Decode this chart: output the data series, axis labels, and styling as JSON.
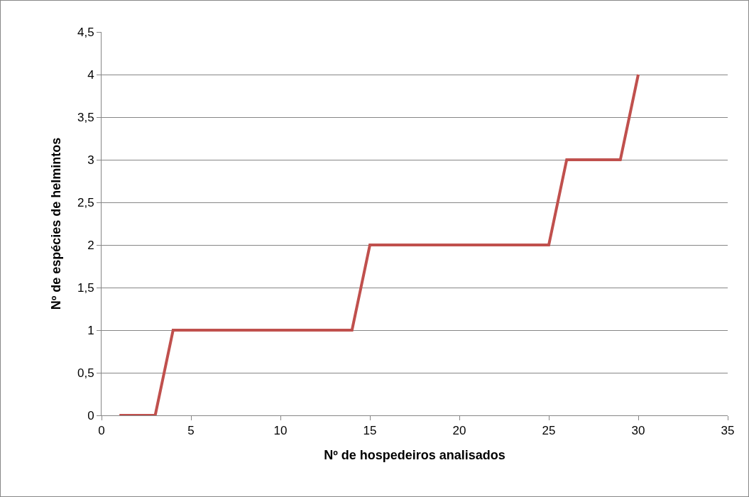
{
  "chart_data": {
    "type": "line",
    "xlabel": "Nº de hospedeiros analisados",
    "ylabel": "Nº de espécies de helmintos",
    "x": [
      1,
      2,
      3,
      4,
      5,
      6,
      7,
      8,
      9,
      10,
      11,
      12,
      13,
      14,
      15,
      16,
      17,
      18,
      19,
      20,
      21,
      22,
      23,
      24,
      25,
      26,
      27,
      28,
      29,
      30
    ],
    "series": [
      {
        "color": "#c0504d",
        "values": [
          0,
          0,
          0,
          1,
          1,
          1,
          1,
          1,
          1,
          1,
          1,
          1,
          1,
          1,
          2,
          2,
          2,
          2,
          2,
          2,
          2,
          2,
          2,
          2,
          2,
          3,
          3,
          3,
          3,
          4
        ]
      }
    ],
    "xlim": [
      0,
      35
    ],
    "xticks": [
      0,
      5,
      10,
      15,
      20,
      25,
      30,
      35
    ],
    "ylim": [
      0,
      4.5
    ],
    "yticks": [
      0,
      {
        "value": 0.5,
        "label": "0,5"
      },
      1,
      {
        "value": 1.5,
        "label": "1,5"
      },
      2,
      {
        "value": 2.5,
        "label": "2,5"
      },
      3,
      {
        "value": 3.5,
        "label": "3,5"
      },
      4,
      {
        "value": 4.5,
        "label": "4,5"
      }
    ],
    "grid": "y",
    "marker": "none",
    "line_style": "solid"
  }
}
